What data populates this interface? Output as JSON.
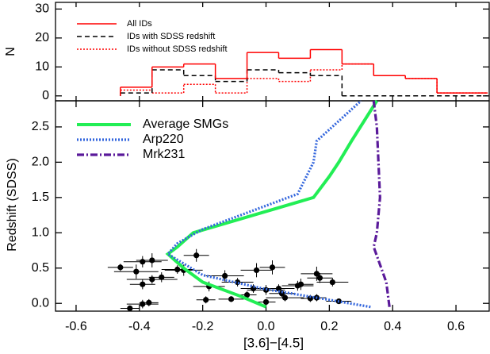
{
  "chart_data": [
    {
      "type": "histogram",
      "ylabel": "N",
      "bins": [
        -0.46,
        -0.36,
        -0.26,
        -0.16,
        -0.06,
        0.04,
        0.14,
        0.24,
        0.34,
        0.44,
        0.54,
        0.7
      ],
      "xlim": [
        -0.665,
        0.705
      ],
      "ylim": [
        -1.7,
        32.3
      ],
      "yticks": [
        0,
        10,
        20,
        30
      ],
      "series": [
        {
          "name": "IDs without SDSS redshift",
          "color": "#ff0000",
          "dash": "dotted",
          "values": [
            2,
            1,
            4,
            1,
            6,
            5,
            9,
            11,
            7,
            6,
            1
          ]
        },
        {
          "name": "IDs with SDSS redshift",
          "color": "#000000",
          "dash": "dashed",
          "values": [
            1,
            9,
            7,
            5,
            9,
            8,
            7,
            0,
            0,
            0,
            0
          ]
        },
        {
          "name": "All IDs",
          "color": "#ff0000",
          "dash": "solid",
          "values": [
            3,
            10,
            11,
            6,
            15,
            13,
            16,
            11,
            7,
            6,
            1
          ]
        }
      ]
    },
    {
      "type": "line",
      "xlabel": "[3.6]−[4.5]",
      "ylabel": "Redshift (SDSS)",
      "xlim": [
        -0.665,
        0.705
      ],
      "ylim": [
        -0.11,
        2.87
      ],
      "xticks": [
        -0.6,
        -0.4,
        -0.2,
        {
          "value": 0,
          "label": "0.0"
        },
        0.2,
        0.4,
        0.6
      ],
      "yticks": [
        {
          "value": 0,
          "label": "0.0"
        },
        0.5,
        {
          "value": 1,
          "label": "1.0"
        },
        1.5,
        {
          "value": 2,
          "label": "2.0"
        },
        2.5
      ],
      "series": [
        {
          "name": "Average SMGs",
          "color": "#22ee55",
          "dash": "solid",
          "x": [
            0.0,
            -0.08,
            -0.2,
            -0.26,
            -0.31,
            -0.28,
            -0.23,
            0.15,
            0.2,
            0.23,
            0.27,
            0.35
          ],
          "values": [
            -0.05,
            0.1,
            0.3,
            0.5,
            0.7,
            0.8,
            1.0,
            1.5,
            1.8,
            2.0,
            2.3,
            2.87
          ]
        },
        {
          "name": "Arp220",
          "color": "#3366dd",
          "dash": "dotted",
          "x": [
            0.33,
            0.2,
            0.0,
            -0.2,
            -0.31,
            -0.28,
            -0.2,
            0.1,
            0.15,
            0.16,
            0.3
          ],
          "values": [
            -0.05,
            0.05,
            0.2,
            0.4,
            0.7,
            0.85,
            1.05,
            1.55,
            2.0,
            2.3,
            2.87
          ]
        },
        {
          "name": "Mrk231",
          "color": "#5a1a9a",
          "dash": "dashdot",
          "x": [
            0.39,
            0.38,
            0.34,
            0.35,
            0.36,
            0.35,
            0.34
          ],
          "values": [
            -0.05,
            0.3,
            0.8,
            1.0,
            1.5,
            2.5,
            2.87
          ]
        }
      ],
      "points": {
        "color": "#000000",
        "x": [
          -0.46,
          -0.43,
          -0.39,
          -0.41,
          -0.39,
          -0.39,
          -0.36,
          -0.36,
          -0.37,
          -0.33,
          -0.28,
          -0.26,
          -0.22,
          -0.19,
          -0.18,
          -0.13,
          -0.11,
          -0.09,
          -0.06,
          -0.04,
          -0.03,
          0.0,
          0.0,
          0.02,
          0.04,
          0.05,
          0.06,
          0.1,
          0.11,
          0.14,
          0.16,
          0.17,
          0.16,
          0.21,
          0.23
        ],
        "values": [
          0.51,
          -0.07,
          -0.01,
          0.45,
          0.27,
          0.59,
          0.61,
          0.34,
          0.01,
          0.37,
          0.48,
          0.47,
          0.68,
          0.05,
          0.24,
          0.39,
          0.06,
          0.3,
          0.12,
          0.21,
          0.47,
          0.19,
          0.02,
          0.51,
          0.21,
          0.14,
          0.08,
          0.25,
          0.27,
          0.07,
          0.42,
          0.36,
          0.08,
          0.3,
          0.03
        ],
        "xerr": [
          0.04,
          0.03,
          0.05,
          0.07,
          0.04,
          0.06,
          0.05,
          0.08,
          0.03,
          0.04,
          0.05,
          0.06,
          0.04,
          0.03,
          0.05,
          0.06,
          0.04,
          0.05,
          0.03,
          0.04,
          0.05,
          0.06,
          0.03,
          0.04,
          0.05,
          0.04,
          0.06,
          0.05,
          0.04,
          0.03,
          0.05,
          0.04,
          0.03,
          0.05,
          0.04
        ],
        "yerr": [
          0.05,
          0.04,
          0.06,
          0.1,
          0.07,
          0.08,
          0.1,
          0.06,
          0.05,
          0.07,
          0.06,
          0.08,
          0.09,
          0.05,
          0.07,
          0.08,
          0.04,
          0.06,
          0.05,
          0.06,
          0.1,
          0.07,
          0.04,
          0.1,
          0.06,
          0.05,
          0.05,
          0.07,
          0.08,
          0.05,
          0.1,
          0.07,
          0.05,
          0.06,
          0.04
        ]
      }
    }
  ]
}
